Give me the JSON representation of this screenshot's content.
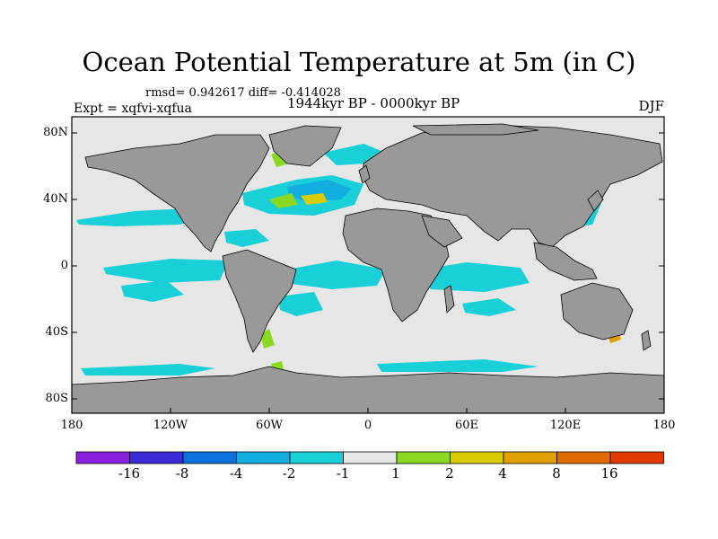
{
  "title": "Ocean Potential Temperature at 5m (in C)",
  "stats_line": "rmsd= 0.942617 diff= -0.414028",
  "experiment": "Expt = xqfvi-xqfua",
  "period": "1944kyr BP - 0000kyr BP",
  "season": "DJF",
  "y_ticks": [
    "80N",
    "40N",
    "0",
    "40S",
    "80S"
  ],
  "x_ticks": [
    "180",
    "120W",
    "60W",
    "0",
    "60E",
    "120E",
    "180"
  ],
  "colorbar": {
    "colors": [
      "#8a20e0",
      "#3a2ad8",
      "#0a72dc",
      "#12aee0",
      "#1ad0d8",
      "#e6e6e6",
      "#8ad820",
      "#d8cc00",
      "#e0a000",
      "#e06a00",
      "#e03a00"
    ],
    "labels": [
      "-16",
      "-8",
      "-4",
      "-2",
      "-1",
      "1",
      "2",
      "4",
      "8",
      "16"
    ]
  },
  "colors": {
    "ocean_background": "#e6e6e6",
    "land": "#999999",
    "cool": "#1ad0d8",
    "cooler": "#12aee0",
    "coolest": "#0a72dc",
    "warm_green": "#8ad820",
    "warm_yellow": "#d8cc00",
    "warm_orange": "#e0a000"
  }
}
